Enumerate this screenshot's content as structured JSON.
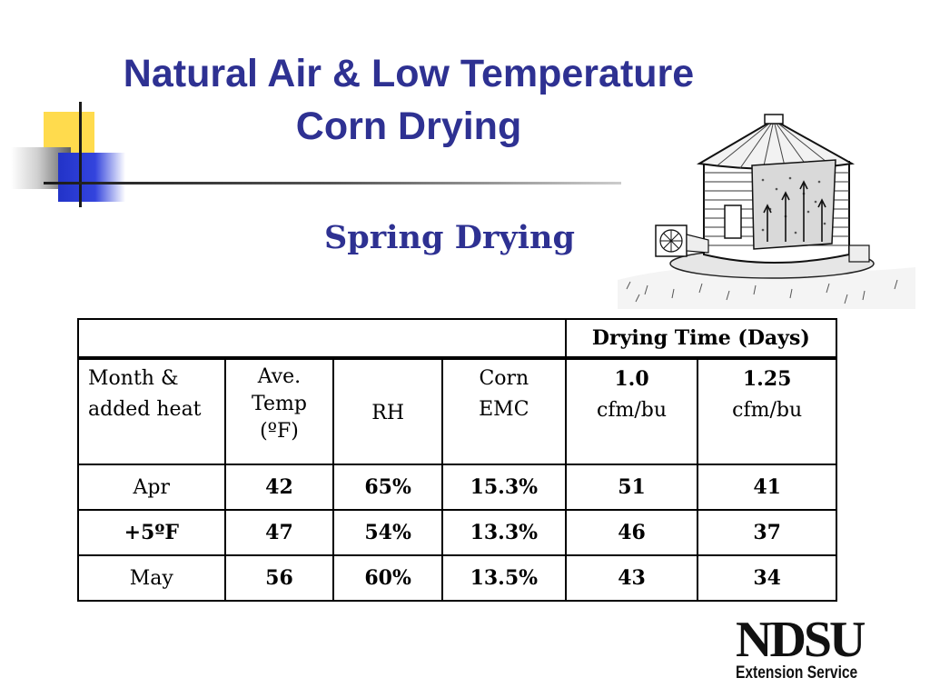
{
  "title": {
    "line1": "Natural Air & Low Temperature",
    "line2": "Corn Drying"
  },
  "subtitle": "Spring Drying",
  "table": {
    "header_top": "Drying Time (Days)",
    "columns": [
      {
        "line1": "Month &",
        "line2": "added heat"
      },
      {
        "line1": "Ave.",
        "line2": "Temp",
        "line3": "(ºF)"
      },
      {
        "line1": "RH"
      },
      {
        "line1": "Corn",
        "line2": "EMC"
      },
      {
        "line1": "1.0",
        "line2": "cfm/bu"
      },
      {
        "line1": "1.25",
        "line2": "cfm/bu"
      }
    ],
    "rows": [
      [
        "Apr",
        "42",
        "65%",
        "15.3%",
        "51",
        "41"
      ],
      [
        "+5ºF",
        "47",
        "54%",
        "13.3%",
        "46",
        "37"
      ],
      [
        "May",
        "56",
        "60%",
        "13.5%",
        "43",
        "34"
      ]
    ]
  },
  "logo": {
    "main": "NDSU",
    "sub": "Extension Service"
  }
}
